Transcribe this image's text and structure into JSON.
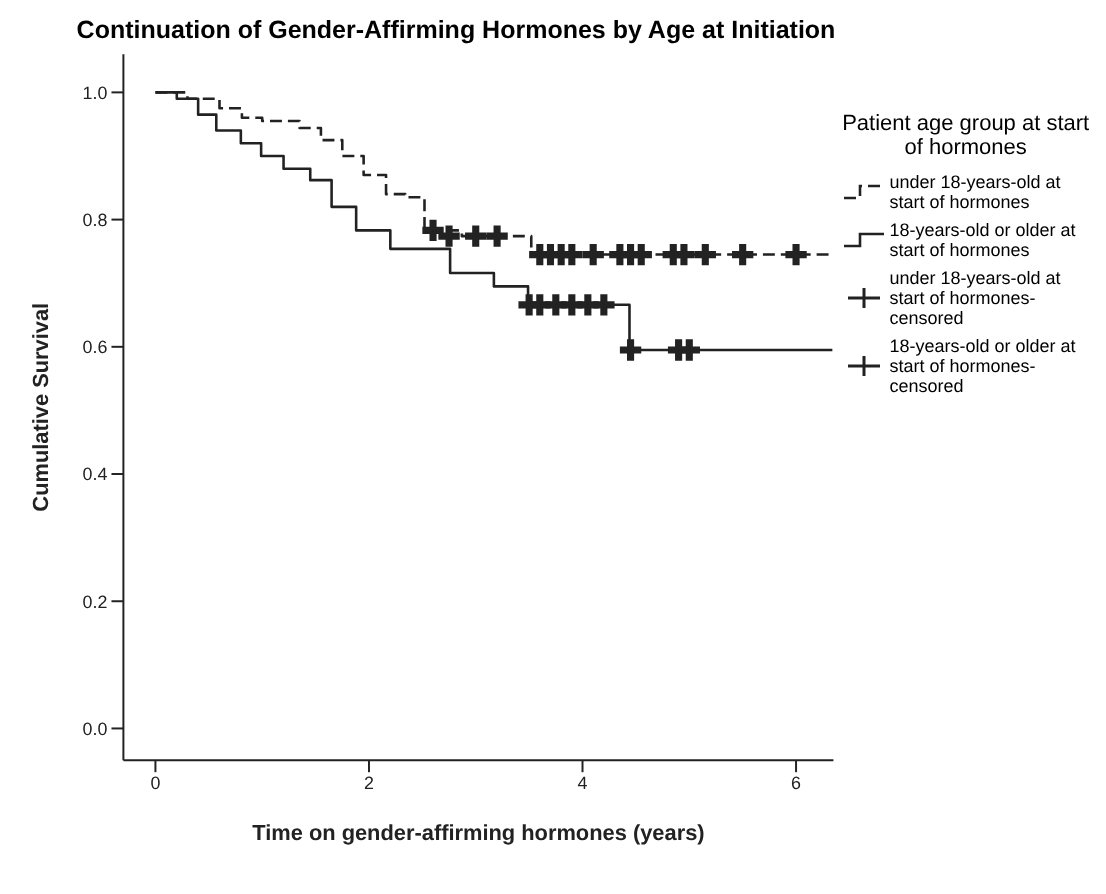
{
  "chart_data": {
    "type": "step",
    "title": "Continuation of Gender-Affirming Hormones by Age at Initiation",
    "xlabel": "Time on gender-affirming hormones (years)",
    "ylabel": "Cumulative Survival",
    "legend_title": "Patient age group at start of hormones",
    "legend": "right",
    "xlim": [
      -0.3,
      6.35
    ],
    "xticks": [
      0,
      2,
      4,
      6
    ],
    "ylim": [
      -0.05,
      1.06
    ],
    "yticks": [
      {
        "value": 0,
        "label": "0.0"
      },
      {
        "value": 0.2,
        "label": "0.2"
      },
      {
        "value": 0.4,
        "label": "0.4"
      },
      {
        "value": 0.6,
        "label": "0.6"
      },
      {
        "value": 0.8,
        "label": "0.8"
      },
      {
        "value": 1,
        "label": "1.0"
      }
    ],
    "series": [
      {
        "name": "under 18-years-old at start of hormones",
        "line_style": "dashed",
        "marker": "none",
        "color": "#222222",
        "x": [
          0,
          0.3,
          0.6,
          0.81,
          1.0,
          1.35,
          1.55,
          1.75,
          1.95,
          2.16,
          2.34,
          2.52,
          2.87,
          3.52,
          6.34
        ],
        "values": [
          1.0,
          0.99,
          0.975,
          0.96,
          0.955,
          0.944,
          0.925,
          0.9,
          0.87,
          0.84,
          0.835,
          0.783,
          0.774,
          0.745,
          0.745
        ]
      },
      {
        "name": "18-years-old or older at start of hormones",
        "line_style": "solid",
        "marker": "none",
        "color": "#222222",
        "x": [
          0,
          0.2,
          0.4,
          0.57,
          0.8,
          0.99,
          1.2,
          1.45,
          1.65,
          1.88,
          2.2,
          2.76,
          3.17,
          3.49,
          4.44,
          6.34
        ],
        "values": [
          1.0,
          0.99,
          0.965,
          0.94,
          0.92,
          0.9,
          0.88,
          0.862,
          0.82,
          0.783,
          0.754,
          0.716,
          0.695,
          0.666,
          0.595,
          0.595
        ]
      },
      {
        "name": "under 18-years-old at start of hormones-censored",
        "type": "scatter",
        "marker": "cross",
        "color": "#222222",
        "x": [
          2.6,
          2.75,
          3.0,
          3.2,
          3.6,
          3.7,
          3.8,
          3.9,
          4.1,
          4.35,
          4.45,
          4.55,
          4.85,
          4.95,
          5.15,
          5.5,
          6.0
        ],
        "values": [
          0.783,
          0.774,
          0.774,
          0.774,
          0.745,
          0.745,
          0.745,
          0.745,
          0.745,
          0.745,
          0.745,
          0.745,
          0.745,
          0.745,
          0.745,
          0.745,
          0.745
        ]
      },
      {
        "name": "18-years-old or older at start of hormones-censored",
        "type": "scatter",
        "marker": "cross",
        "color": "#222222",
        "x": [
          3.5,
          3.6,
          3.75,
          3.9,
          4.05,
          4.2,
          4.45,
          4.9,
          5.0
        ],
        "values": [
          0.666,
          0.666,
          0.666,
          0.666,
          0.666,
          0.666,
          0.595,
          0.595,
          0.595
        ]
      }
    ]
  }
}
